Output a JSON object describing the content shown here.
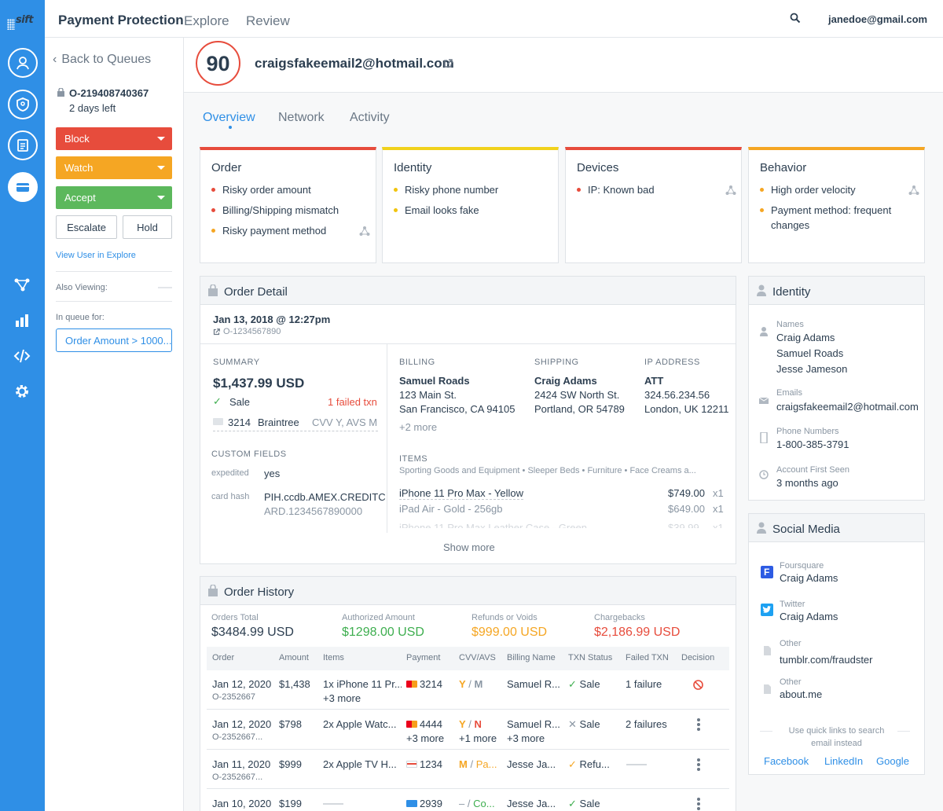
{
  "app": {
    "brand": "sift",
    "title": "Payment Protection",
    "nav": [
      "Explore",
      "Review"
    ],
    "user_email": "janedoe@gmail.com"
  },
  "colors": {
    "primary": "#2f8fe6",
    "block": "#e74c3c",
    "watch": "#f5a623",
    "accept": "#5cb85c",
    "risk_high": "#e74c3c",
    "risk_medium": "#f5a623",
    "risk_low": "#f1c40f"
  },
  "rail_icons": [
    "user-circle-icon",
    "shield-icon",
    "document-icon",
    "credit-card-icon",
    "network-icon",
    "bar-chart-icon",
    "code-icon",
    "gear-icon"
  ],
  "sidebar": {
    "back": "Back to Queues",
    "order_id": "O-219408740367",
    "days_left": "2 days left",
    "block": "Block",
    "watch": "Watch",
    "accept": "Accept",
    "escalate": "Escalate",
    "hold": "Hold",
    "view_user": "View User in Explore",
    "also_viewing": "Also Viewing:",
    "in_queue_for": "In queue for:",
    "queue": "Order Amount > 1000..."
  },
  "header": {
    "score": "90",
    "user": "craigsfakeemail2@hotmail.com"
  },
  "tabs": [
    "Overview",
    "Network",
    "Activity"
  ],
  "signals": [
    {
      "title": "Order",
      "items": [
        {
          "text": "Risky order amount",
          "level": "high"
        },
        {
          "text": "Billing/Shipping mismatch",
          "level": "high"
        },
        {
          "text": "Risky payment method",
          "level": "medium"
        }
      ]
    },
    {
      "title": "Identity",
      "items": [
        {
          "text": "Risky phone number",
          "level": "low"
        },
        {
          "text": "Email looks fake",
          "level": "low"
        }
      ]
    },
    {
      "title": "Devices",
      "items": [
        {
          "text": "IP: Known bad",
          "level": "high"
        }
      ]
    },
    {
      "title": "Behavior",
      "items": [
        {
          "text": "High order velocity",
          "level": "medium"
        },
        {
          "text": "Payment method: frequent",
          "level": "medium"
        }
      ],
      "wrap": "changes"
    }
  ],
  "order_detail": {
    "title": "Order Detail",
    "date": "Jan 13, 2018 @ 12:27pm",
    "order_id": "O-1234567890",
    "summary_label": "SUMMARY",
    "amount": "$1,437.99 USD",
    "status": "Sale",
    "failed": "1 failed txn",
    "card_last4": "3214",
    "processor": "Braintree",
    "cvv_avs": "CVV Y, AVS M",
    "custom_fields_label": "CUSTOM FIELDS",
    "custom_fields": [
      {
        "key": "expedited",
        "value": "yes"
      },
      {
        "key": "card hash",
        "value": "PIH.ccdb.AMEX.CREDITC",
        "value2": "ARD.1234567890000"
      }
    ],
    "billing": {
      "label": "BILLING",
      "name": "Samuel Roads",
      "line1": "123 Main St.",
      "line2": "San Francisco, CA 94105",
      "more": "+2 more"
    },
    "shipping": {
      "label": "SHIPPING",
      "name": "Craig Adams",
      "line1": "2424 SW North St.",
      "line2": "Portland, OR 54789"
    },
    "ip": {
      "label": "IP ADDRESS",
      "name": "ATT",
      "line1": "324.56.234.56",
      "line2": "London, UK 12211"
    },
    "items_label": "ITEMS",
    "items_categories": "Sporting Goods and Equipment • Sleeper Beds • Furniture • Face Creams a...",
    "items": [
      {
        "name": "iPhone 11 Pro Max - Yellow",
        "price": "$749.00",
        "qty": "x1"
      },
      {
        "name": "iPad Air - Gold - 256gb",
        "price": "$649.00",
        "qty": "x1"
      },
      {
        "name": "iPhone 11 Pro Max Leather Case - Green",
        "price": "$39.99",
        "qty": "x1"
      }
    ],
    "show_more": "Show more"
  },
  "order_history": {
    "title": "Order History",
    "stats": [
      {
        "label": "Orders Total",
        "value": "$3484.99 USD"
      },
      {
        "label": "Authorized Amount",
        "value": "$1298.00 USD"
      },
      {
        "label": "Refunds or Voids",
        "value": "$999.00 USD"
      },
      {
        "label": "Chargebacks",
        "value": "$2,186.99 USD"
      }
    ],
    "columns": [
      "Order",
      "Amount",
      "Items",
      "Payment",
      "CVV/AVS",
      "Billing Name",
      "TXN Status",
      "Failed TXN",
      "Decision"
    ],
    "rows": [
      {
        "date": "Jan 12, 2020",
        "id": "O-2352667",
        "amount": "$1,438",
        "items": "1x iPhone 11 Pr...",
        "items_more": "+3 more",
        "card": "3214",
        "cvv": "Y",
        "avs": "M",
        "billing": "Samuel R...",
        "status": "Sale",
        "failed": "1 failure"
      },
      {
        "date": "Jan 12, 2020",
        "id": "O-2352667...",
        "amount": "$798",
        "items": "2x Apple Watc...",
        "items_more": "+3 more",
        "card": "4444",
        "card_more": "+3 more",
        "cvv": "Y",
        "avs": "N",
        "avs_more": "+1 more",
        "billing": "Samuel R...",
        "billing_more": "+3 more",
        "status": "Sale",
        "failed": "2 failures"
      },
      {
        "date": "Jan 11, 2020",
        "id": "O-2352667...",
        "amount": "$999",
        "items": "2x Apple TV H...",
        "card": "1234",
        "cvv": "M",
        "avs": "Pa...",
        "billing": "Jesse Ja...",
        "status": "Refu..."
      },
      {
        "date": "Jan 10, 2020",
        "amount": "$199",
        "card": "2939",
        "cvv": "–",
        "avs": "Co...",
        "billing": "Jesse Ja...",
        "status": "Sale"
      }
    ]
  },
  "identity": {
    "title": "Identity",
    "names_label": "Names",
    "names": [
      "Craig Adams",
      "Samuel Roads",
      "Jesse Jameson"
    ],
    "emails_label": "Emails",
    "email": "craigsfakeemail2@hotmail.com",
    "phones_label": "Phone Numbers",
    "phone": "1-800-385-3791",
    "first_seen_label": "Account First Seen",
    "first_seen": "3 months ago"
  },
  "social": {
    "title": "Social Media",
    "entries": [
      {
        "label": "Foursquare",
        "value": "Craig Adams"
      },
      {
        "label": "Twitter",
        "value": "Craig Adams"
      },
      {
        "label": "Other",
        "value": "tumblr.com/fraudster"
      },
      {
        "label": "Other",
        "value": "about.me"
      }
    ],
    "hint": "Use quick links to search",
    "hint2": "email instead",
    "links": [
      "Facebook",
      "LinkedIn",
      "Google"
    ]
  }
}
